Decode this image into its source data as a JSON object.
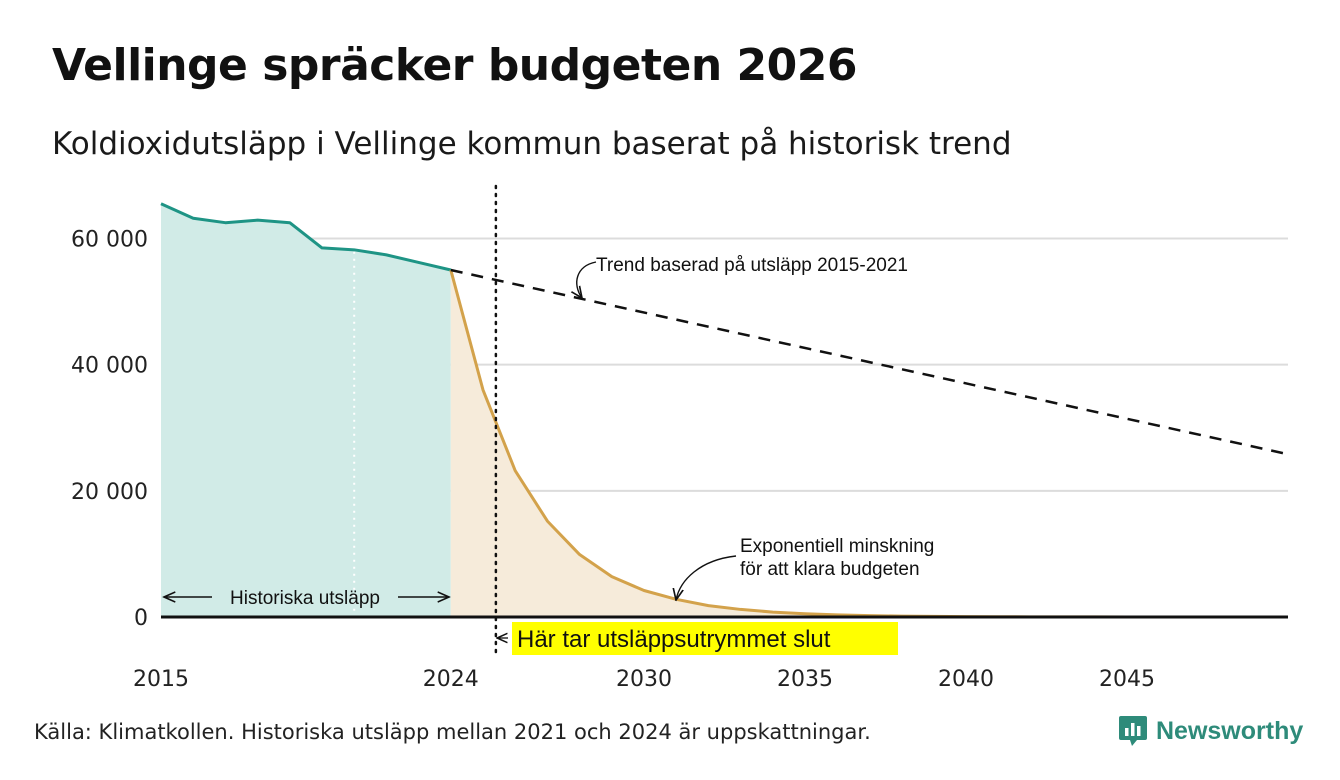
{
  "title": "Vellinge spräcker budgeten 2026",
  "subtitle": "Koldioxidutsläpp i Vellinge kommun baserat på historisk trend",
  "source": "Källa: Klimatkollen. Historiska utsläpp mellan 2021 och 2024 är uppskattningar.",
  "brand": "Newsworthy",
  "colors": {
    "historical_line": "#1e9485",
    "historical_fill": "#d1ebe7",
    "budget_line": "#d3a24b",
    "budget_fill": "#f6ebda",
    "grid": "#dcdcdc",
    "highlight": "#ffff00",
    "brand": "#2e8b7a"
  },
  "chart_data": {
    "type": "area",
    "xlim": [
      2015,
      2050
    ],
    "ylim": [
      0,
      68000
    ],
    "xticks": [
      {
        "value": 2015,
        "label": "2015"
      },
      {
        "value": 2024,
        "label": "2024"
      },
      {
        "value": 2030,
        "label": "2030"
      },
      {
        "value": 2035,
        "label": "2035"
      },
      {
        "value": 2040,
        "label": "2040"
      },
      {
        "value": 2045,
        "label": "2045"
      }
    ],
    "yticks": [
      {
        "value": 0,
        "label": "0"
      },
      {
        "value": 20000,
        "label": "20 000"
      },
      {
        "value": 40000,
        "label": "40 000"
      },
      {
        "value": 60000,
        "label": "60 000"
      }
    ],
    "grid": true,
    "series": [
      {
        "name": "Historiska utsläpp",
        "style": "area",
        "x": [
          2015,
          2016,
          2017,
          2018,
          2019,
          2020,
          2021,
          2022,
          2023,
          2024
        ],
        "values": [
          65500,
          63200,
          62500,
          62900,
          62500,
          58500,
          58200,
          57400,
          56200,
          55000
        ]
      },
      {
        "name": "Exponentiell minskning för att klara budgeten",
        "style": "area",
        "x": [
          2024,
          2025,
          2026,
          2027,
          2028,
          2029,
          2030,
          2031,
          2032,
          2033,
          2034,
          2035,
          2036,
          2037,
          2038,
          2039,
          2040,
          2041,
          2042,
          2043,
          2044,
          2045,
          2046,
          2047,
          2048,
          2049,
          2050
        ],
        "values": [
          55000,
          36000,
          23200,
          15200,
          9900,
          6400,
          4200,
          2800,
          1800,
          1200,
          780,
          510,
          330,
          215,
          140,
          92,
          60,
          39,
          25,
          16,
          11,
          7,
          5,
          3,
          2,
          1,
          1
        ]
      },
      {
        "name": "Trend baserad på utsläpp 2015-2021",
        "style": "dashed",
        "x": [
          2024,
          2050
        ],
        "values": [
          55000,
          25800
        ]
      }
    ],
    "reference_lines": [
      {
        "x": 2025.4,
        "style": "dotted",
        "color": "#111111"
      },
      {
        "x": 2021,
        "style": "dotted",
        "color": "#ffffff"
      }
    ],
    "annotations": {
      "trend": "Trend baserad på utsläpp 2015-2021",
      "exp_line1": "Exponentiell minskning",
      "exp_line2": "för att klara budgeten",
      "historical": "Historiska utsläpp",
      "budget_end": "Här tar utsläppsutrymmet slut"
    }
  }
}
